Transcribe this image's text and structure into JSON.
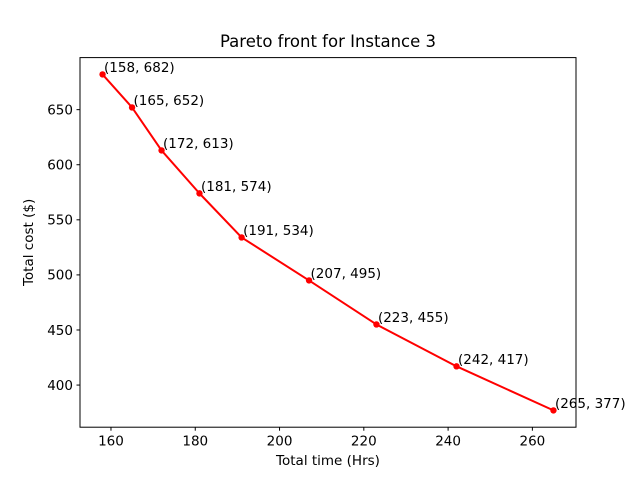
{
  "figure": {
    "background": "#ffffff"
  },
  "chart_data": {
    "type": "line",
    "title": "Pareto front for Instance 3",
    "xlabel": "Total time (Hrs)",
    "ylabel": "Total cost ($)",
    "line_color": "#ff0000",
    "marker": "o",
    "marker_color": "#ff0000",
    "text_color": "#000000",
    "frame_color": "#000000",
    "grid": false,
    "xlim": [
      152.65,
      270.35
    ],
    "ylim": [
      361.75,
      697.25
    ],
    "xticks": [
      160,
      180,
      200,
      220,
      240,
      260
    ],
    "yticks": [
      400,
      450,
      500,
      550,
      600,
      650
    ],
    "points": [
      {
        "x": 158,
        "y": 682,
        "label": "(158, 682)"
      },
      {
        "x": 165,
        "y": 652,
        "label": "(165, 652)"
      },
      {
        "x": 172,
        "y": 613,
        "label": "(172, 613)"
      },
      {
        "x": 181,
        "y": 574,
        "label": "(181, 574)"
      },
      {
        "x": 191,
        "y": 534,
        "label": "(191, 534)"
      },
      {
        "x": 207,
        "y": 495,
        "label": "(207, 495)"
      },
      {
        "x": 223,
        "y": 455,
        "label": "(223, 455)"
      },
      {
        "x": 242,
        "y": 417,
        "label": "(242, 417)"
      },
      {
        "x": 265,
        "y": 377,
        "label": "(265, 377)"
      }
    ]
  }
}
